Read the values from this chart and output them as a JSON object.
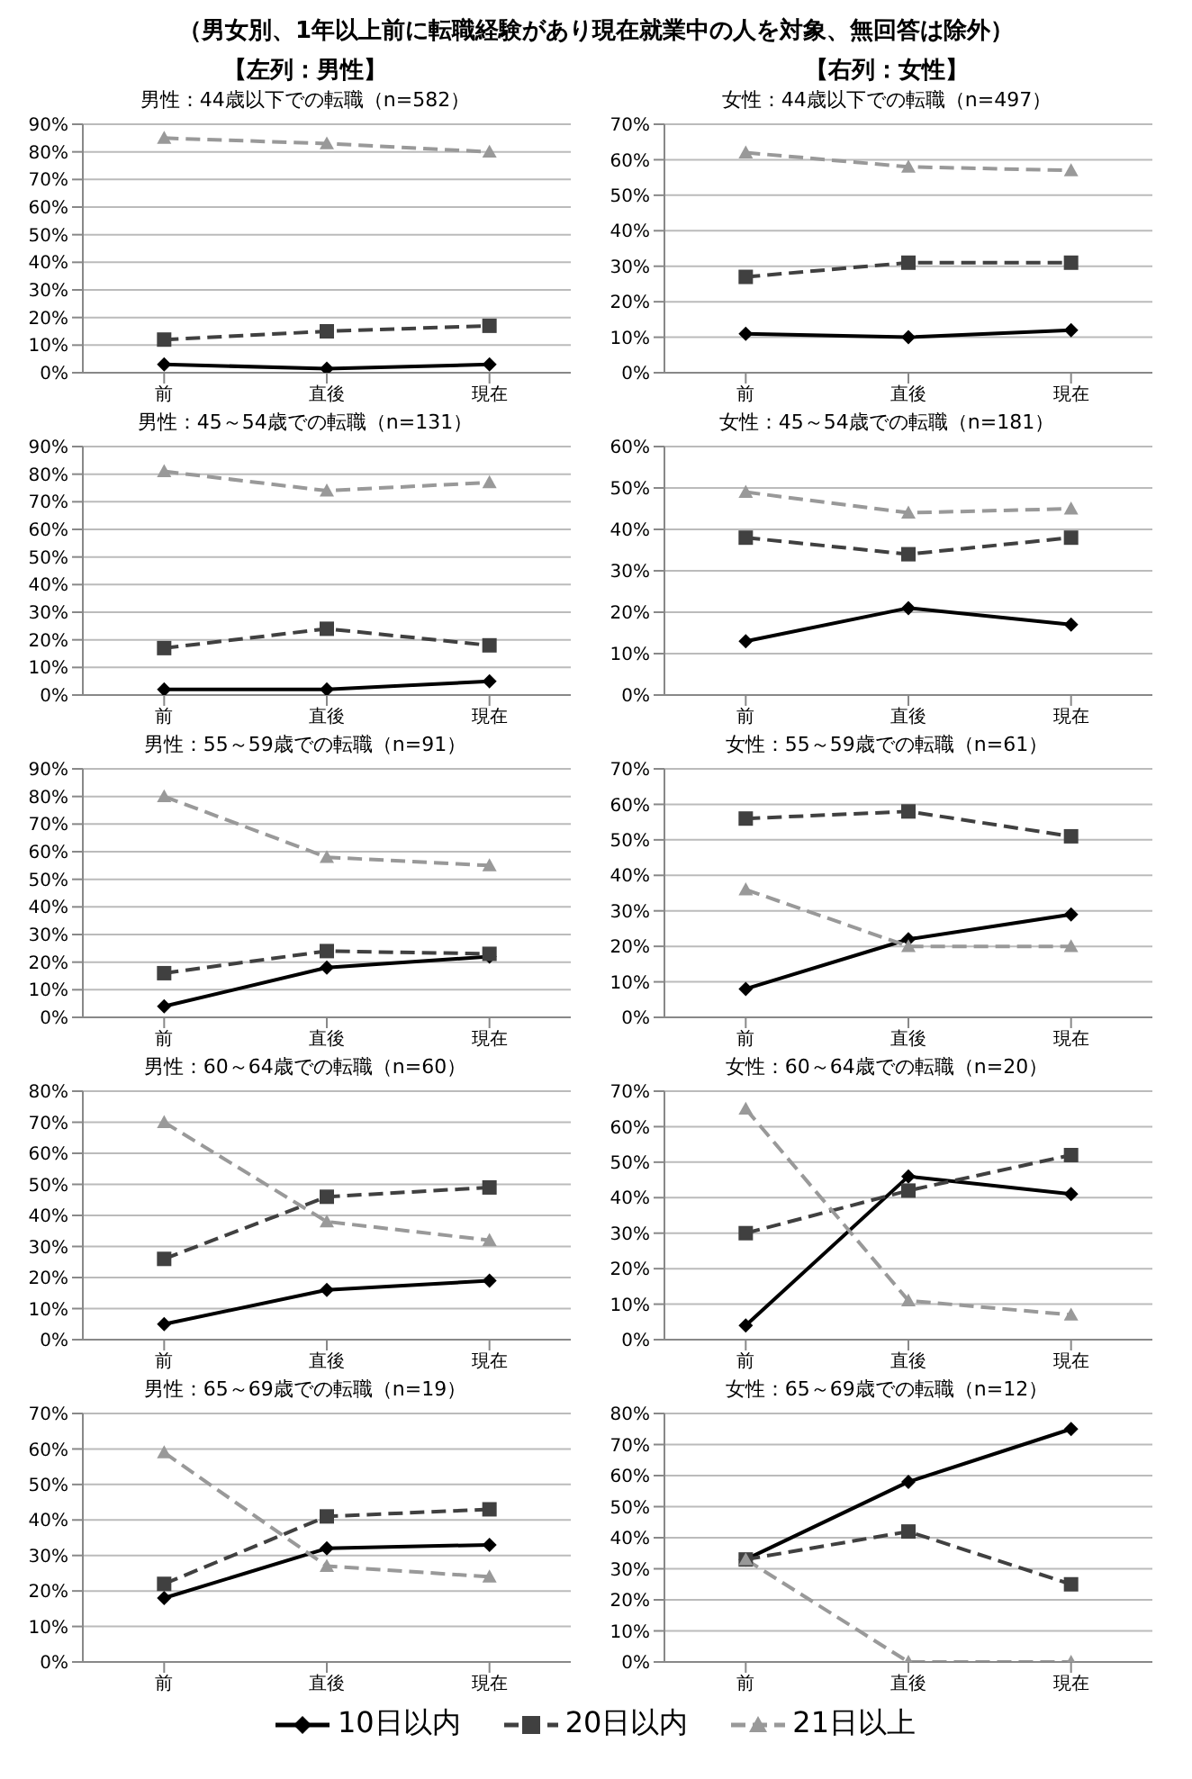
{
  "chart_data": [
    {
      "type": "line",
      "title": "男性：44歳以下での転職（n=582）",
      "subtitle": "【左列：男性】",
      "annotations": [
        "（男女別、1年以上前に転職経験があり現在就業中の人を対象、無回答は除外）"
      ],
      "categories": [
        "前",
        "直後",
        "現在"
      ],
      "ylim": [
        0,
        90
      ],
      "yticks": [
        {
          "value": 0,
          "label": "0%"
        },
        {
          "value": 10,
          "label": "10%"
        },
        {
          "value": 20,
          "label": "20%"
        },
        {
          "value": 30,
          "label": "30%"
        },
        {
          "value": 40,
          "label": "40%"
        },
        {
          "value": 50,
          "label": "50%"
        },
        {
          "value": 60,
          "label": "60%"
        },
        {
          "value": 70,
          "label": "70%"
        },
        {
          "value": 80,
          "label": "80%"
        },
        {
          "value": 90,
          "label": "90%"
        }
      ],
      "grid": "y",
      "legend": "bottom",
      "series": [
        {
          "name": "10日以内",
          "color": "#000000",
          "marker": "diamond",
          "line_style": "solid",
          "values": [
            3,
            1.5,
            3
          ]
        },
        {
          "name": "20日以内",
          "color": "#404040",
          "marker": "square",
          "line_style": "dashed",
          "values": [
            12,
            15,
            17
          ]
        },
        {
          "name": "21日以上",
          "color": "#999999",
          "marker": "triangle",
          "line_style": "dashed",
          "values": [
            85,
            83,
            80
          ]
        }
      ]
    },
    {
      "type": "line",
      "title": "女性：44歳以下での転職（n=497）",
      "subtitle": "【右列：女性】",
      "categories": [
        "前",
        "直後",
        "現在"
      ],
      "ylim": [
        0,
        70
      ],
      "yticks": [
        {
          "value": 0,
          "label": "0%"
        },
        {
          "value": 10,
          "label": "10%"
        },
        {
          "value": 20,
          "label": "20%"
        },
        {
          "value": 30,
          "label": "30%"
        },
        {
          "value": 40,
          "label": "40%"
        },
        {
          "value": 50,
          "label": "50%"
        },
        {
          "value": 60,
          "label": "60%"
        },
        {
          "value": 70,
          "label": "70%"
        }
      ],
      "grid": "y",
      "series": [
        {
          "color": "#000000",
          "marker": "diamond",
          "line_style": "solid",
          "values": [
            11,
            10,
            12
          ]
        },
        {
          "color": "#404040",
          "marker": "square",
          "line_style": "dashed",
          "values": [
            27,
            31,
            31
          ]
        },
        {
          "color": "#999999",
          "marker": "triangle",
          "line_style": "dashed",
          "values": [
            62,
            58,
            57
          ]
        }
      ]
    },
    {
      "type": "line",
      "title": "男性：45～54歳での転職（n=131）",
      "categories": [
        "前",
        "直後",
        "現在"
      ],
      "ylim": [
        0,
        90
      ],
      "yticks": [
        {
          "value": 0,
          "label": "0%"
        },
        {
          "value": 10,
          "label": "10%"
        },
        {
          "value": 20,
          "label": "20%"
        },
        {
          "value": 30,
          "label": "30%"
        },
        {
          "value": 40,
          "label": "40%"
        },
        {
          "value": 50,
          "label": "50%"
        },
        {
          "value": 60,
          "label": "60%"
        },
        {
          "value": 70,
          "label": "70%"
        },
        {
          "value": 80,
          "label": "80%"
        },
        {
          "value": 90,
          "label": "90%"
        }
      ],
      "grid": "y",
      "series": [
        {
          "color": "#000000",
          "marker": "diamond",
          "line_style": "solid",
          "values": [
            2,
            2,
            5
          ]
        },
        {
          "color": "#404040",
          "marker": "square",
          "line_style": "dashed",
          "values": [
            17,
            24,
            18
          ]
        },
        {
          "color": "#999999",
          "marker": "triangle",
          "line_style": "dashed",
          "values": [
            81,
            74,
            77
          ]
        }
      ]
    },
    {
      "type": "line",
      "title": "女性：45～54歳での転職（n=181）",
      "categories": [
        "前",
        "直後",
        "現在"
      ],
      "ylim": [
        0,
        60
      ],
      "yticks": [
        {
          "value": 0,
          "label": "0%"
        },
        {
          "value": 10,
          "label": "10%"
        },
        {
          "value": 20,
          "label": "20%"
        },
        {
          "value": 30,
          "label": "30%"
        },
        {
          "value": 40,
          "label": "40%"
        },
        {
          "value": 50,
          "label": "50%"
        },
        {
          "value": 60,
          "label": "60%"
        }
      ],
      "grid": "y",
      "series": [
        {
          "color": "#000000",
          "marker": "diamond",
          "line_style": "solid",
          "values": [
            13,
            21,
            17
          ]
        },
        {
          "color": "#404040",
          "marker": "square",
          "line_style": "dashed",
          "values": [
            38,
            34,
            38
          ]
        },
        {
          "color": "#999999",
          "marker": "triangle",
          "line_style": "dashed",
          "values": [
            49,
            44,
            45
          ]
        }
      ]
    },
    {
      "type": "line",
      "title": "男性：55～59歳での転職（n=91）",
      "categories": [
        "前",
        "直後",
        "現在"
      ],
      "ylim": [
        0,
        90
      ],
      "yticks": [
        {
          "value": 0,
          "label": "0%"
        },
        {
          "value": 10,
          "label": "10%"
        },
        {
          "value": 20,
          "label": "20%"
        },
        {
          "value": 30,
          "label": "30%"
        },
        {
          "value": 40,
          "label": "40%"
        },
        {
          "value": 50,
          "label": "50%"
        },
        {
          "value": 60,
          "label": "60%"
        },
        {
          "value": 70,
          "label": "70%"
        },
        {
          "value": 80,
          "label": "80%"
        },
        {
          "value": 90,
          "label": "90%"
        }
      ],
      "grid": "y",
      "series": [
        {
          "color": "#000000",
          "marker": "diamond",
          "line_style": "solid",
          "values": [
            4,
            18,
            22
          ]
        },
        {
          "color": "#404040",
          "marker": "square",
          "line_style": "dashed",
          "values": [
            16,
            24,
            23
          ]
        },
        {
          "color": "#999999",
          "marker": "triangle",
          "line_style": "dashed",
          "values": [
            80,
            58,
            55
          ]
        }
      ]
    },
    {
      "type": "line",
      "title": "女性：55～59歳での転職（n=61）",
      "categories": [
        "前",
        "直後",
        "現在"
      ],
      "ylim": [
        0,
        70
      ],
      "yticks": [
        {
          "value": 0,
          "label": "0%"
        },
        {
          "value": 10,
          "label": "10%"
        },
        {
          "value": 20,
          "label": "20%"
        },
        {
          "value": 30,
          "label": "30%"
        },
        {
          "value": 40,
          "label": "40%"
        },
        {
          "value": 50,
          "label": "50%"
        },
        {
          "value": 60,
          "label": "60%"
        },
        {
          "value": 70,
          "label": "70%"
        }
      ],
      "grid": "y",
      "series": [
        {
          "color": "#000000",
          "marker": "diamond",
          "line_style": "solid",
          "values": [
            8,
            22,
            29
          ]
        },
        {
          "color": "#404040",
          "marker": "square",
          "line_style": "dashed",
          "values": [
            56,
            58,
            51
          ]
        },
        {
          "color": "#999999",
          "marker": "triangle",
          "line_style": "dashed",
          "values": [
            36,
            20,
            20
          ]
        }
      ]
    },
    {
      "type": "line",
      "title": "男性：60～64歳での転職（n=60）",
      "categories": [
        "前",
        "直後",
        "現在"
      ],
      "ylim": [
        0,
        80
      ],
      "yticks": [
        {
          "value": 0,
          "label": "0%"
        },
        {
          "value": 10,
          "label": "10%"
        },
        {
          "value": 20,
          "label": "20%"
        },
        {
          "value": 30,
          "label": "30%"
        },
        {
          "value": 40,
          "label": "40%"
        },
        {
          "value": 50,
          "label": "50%"
        },
        {
          "value": 60,
          "label": "60%"
        },
        {
          "value": 70,
          "label": "70%"
        },
        {
          "value": 80,
          "label": "80%"
        }
      ],
      "grid": "y",
      "series": [
        {
          "color": "#000000",
          "marker": "diamond",
          "line_style": "solid",
          "values": [
            5,
            16,
            19
          ]
        },
        {
          "color": "#404040",
          "marker": "square",
          "line_style": "dashed",
          "values": [
            26,
            46,
            49
          ]
        },
        {
          "color": "#999999",
          "marker": "triangle",
          "line_style": "dashed",
          "values": [
            70,
            38,
            32
          ]
        }
      ]
    },
    {
      "type": "line",
      "title": "女性：60～64歳での転職（n=20）",
      "categories": [
        "前",
        "直後",
        "現在"
      ],
      "ylim": [
        0,
        70
      ],
      "yticks": [
        {
          "value": 0,
          "label": "0%"
        },
        {
          "value": 10,
          "label": "10%"
        },
        {
          "value": 20,
          "label": "20%"
        },
        {
          "value": 30,
          "label": "30%"
        },
        {
          "value": 40,
          "label": "40%"
        },
        {
          "value": 50,
          "label": "50%"
        },
        {
          "value": 60,
          "label": "60%"
        },
        {
          "value": 70,
          "label": "70%"
        }
      ],
      "grid": "y",
      "series": [
        {
          "color": "#000000",
          "marker": "diamond",
          "line_style": "solid",
          "values": [
            4,
            46,
            41
          ]
        },
        {
          "color": "#404040",
          "marker": "square",
          "line_style": "dashed",
          "values": [
            30,
            42,
            52
          ]
        },
        {
          "color": "#999999",
          "marker": "triangle",
          "line_style": "dashed",
          "values": [
            65,
            11,
            7
          ]
        }
      ]
    },
    {
      "type": "line",
      "title": "男性：65～69歳での転職（n=19）",
      "categories": [
        "前",
        "直後",
        "現在"
      ],
      "ylim": [
        0,
        70
      ],
      "yticks": [
        {
          "value": 0,
          "label": "0%"
        },
        {
          "value": 10,
          "label": "10%"
        },
        {
          "value": 20,
          "label": "20%"
        },
        {
          "value": 30,
          "label": "30%"
        },
        {
          "value": 40,
          "label": "40%"
        },
        {
          "value": 50,
          "label": "50%"
        },
        {
          "value": 60,
          "label": "60%"
        },
        {
          "value": 70,
          "label": "70%"
        }
      ],
      "grid": "y",
      "series": [
        {
          "color": "#000000",
          "marker": "diamond",
          "line_style": "solid",
          "values": [
            18,
            32,
            33
          ]
        },
        {
          "color": "#404040",
          "marker": "square",
          "line_style": "dashed",
          "values": [
            22,
            41,
            43
          ]
        },
        {
          "color": "#999999",
          "marker": "triangle",
          "line_style": "dashed",
          "values": [
            59,
            27,
            24
          ]
        }
      ]
    },
    {
      "type": "line",
      "title": "女性：65～69歳での転職（n=12）",
      "categories": [
        "前",
        "直後",
        "現在"
      ],
      "ylim": [
        0,
        80
      ],
      "yticks": [
        {
          "value": 0,
          "label": "0%"
        },
        {
          "value": 10,
          "label": "10%"
        },
        {
          "value": 20,
          "label": "20%"
        },
        {
          "value": 30,
          "label": "30%"
        },
        {
          "value": 40,
          "label": "40%"
        },
        {
          "value": 50,
          "label": "50%"
        },
        {
          "value": 60,
          "label": "60%"
        },
        {
          "value": 70,
          "label": "70%"
        },
        {
          "value": 80,
          "label": "80%"
        }
      ],
      "grid": "y",
      "series": [
        {
          "color": "#000000",
          "marker": "diamond",
          "line_style": "solid",
          "values": [
            33,
            58,
            75
          ]
        },
        {
          "color": "#404040",
          "marker": "square",
          "line_style": "dashed",
          "values": [
            33,
            42,
            25
          ]
        },
        {
          "color": "#999999",
          "marker": "triangle",
          "line_style": "dashed",
          "values": [
            33,
            0,
            0
          ]
        }
      ]
    }
  ]
}
